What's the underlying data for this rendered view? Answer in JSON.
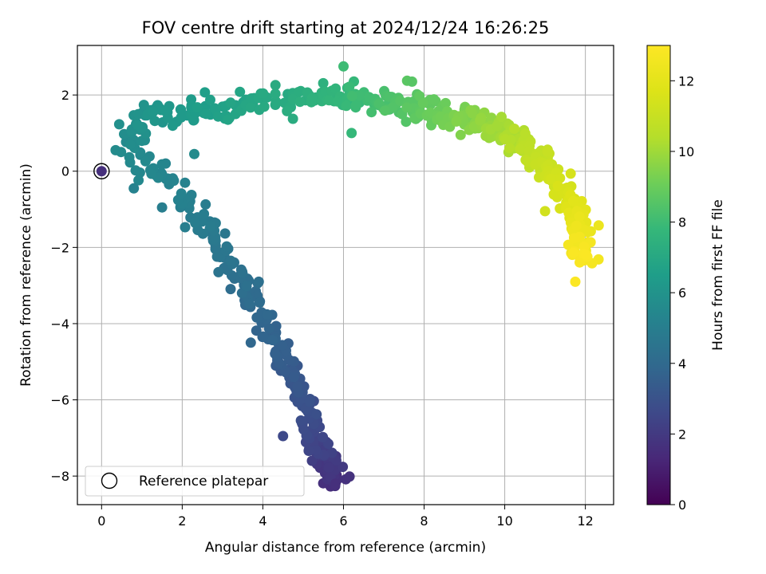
{
  "chart_data": {
    "type": "scatter",
    "title": "FOV centre drift starting at 2024/12/24 16:26:25",
    "xlabel": "Angular distance from reference (arcmin)",
    "ylabel": "Rotation from reference (arcmin)",
    "xlim": [
      -0.6,
      12.7
    ],
    "ylim": [
      -8.75,
      3.3
    ],
    "xticks": [
      0,
      2,
      4,
      6,
      8,
      10,
      12
    ],
    "yticks": [
      -8,
      -6,
      -4,
      -2,
      0,
      2
    ],
    "grid": true,
    "colormap": "viridis",
    "colorbar": {
      "label": "Hours from first FF file",
      "range": [
        0,
        13
      ],
      "ticks": [
        0,
        2,
        4,
        6,
        8,
        10,
        12
      ]
    },
    "legend": {
      "position": "lower-left",
      "entries": [
        {
          "label": "Reference platepar",
          "marker": "open-circle"
        }
      ]
    },
    "reference_point": {
      "x": 0,
      "y": 0,
      "hours": 1.6
    },
    "track_knots": [
      {
        "hours": 1.5,
        "x": 5.8,
        "y": -8.2
      },
      {
        "hours": 2.0,
        "x": 5.6,
        "y": -7.6
      },
      {
        "hours": 2.5,
        "x": 5.3,
        "y": -7.0
      },
      {
        "hours": 3.0,
        "x": 5.0,
        "y": -6.0
      },
      {
        "hours": 3.4,
        "x": 4.6,
        "y": -5.0
      },
      {
        "hours": 3.8,
        "x": 4.1,
        "y": -4.0
      },
      {
        "hours": 4.2,
        "x": 3.6,
        "y": -3.0
      },
      {
        "hours": 4.6,
        "x": 3.0,
        "y": -2.0
      },
      {
        "hours": 5.0,
        "x": 2.3,
        "y": -1.0
      },
      {
        "hours": 5.3,
        "x": 1.5,
        "y": -0.1
      },
      {
        "hours": 5.6,
        "x": 0.6,
        "y": 0.6
      },
      {
        "hours": 6.0,
        "x": 1.0,
        "y": 1.4
      },
      {
        "hours": 6.5,
        "x": 2.5,
        "y": 1.6
      },
      {
        "hours": 7.0,
        "x": 4.0,
        "y": 1.8
      },
      {
        "hours": 7.5,
        "x": 5.5,
        "y": 2.0
      },
      {
        "hours": 8.0,
        "x": 6.5,
        "y": 1.9
      },
      {
        "hours": 8.8,
        "x": 8.0,
        "y": 1.6
      },
      {
        "hours": 9.5,
        "x": 9.2,
        "y": 1.3
      },
      {
        "hours": 10.3,
        "x": 10.2,
        "y": 0.9
      },
      {
        "hours": 11.0,
        "x": 11.0,
        "y": 0.2
      },
      {
        "hours": 11.6,
        "x": 11.6,
        "y": -0.7
      },
      {
        "hours": 12.2,
        "x": 11.9,
        "y": -1.5
      },
      {
        "hours": 12.9,
        "x": 11.9,
        "y": -2.3
      }
    ],
    "outliers": [
      {
        "x": 5.8,
        "y": -8.2,
        "hours": 1.6
      },
      {
        "x": 11.75,
        "y": -2.9,
        "hours": 12.9
      },
      {
        "x": 2.9,
        "y": -2.65,
        "hours": 4.5
      },
      {
        "x": 3.7,
        "y": -4.5,
        "hours": 3.9
      },
      {
        "x": 1.5,
        "y": -0.95,
        "hours": 5.0
      },
      {
        "x": 0.8,
        "y": -0.45,
        "hours": 5.2
      },
      {
        "x": 2.3,
        "y": 0.45,
        "hours": 5.6
      },
      {
        "x": 6.0,
        "y": 2.75,
        "hours": 8.0
      },
      {
        "x": 6.2,
        "y": 1.0,
        "hours": 7.8
      },
      {
        "x": 4.5,
        "y": -6.95,
        "hours": 2.6
      },
      {
        "x": 7.7,
        "y": 2.35,
        "hours": 8.6
      },
      {
        "x": 11.0,
        "y": -1.05,
        "hours": 11.3
      }
    ]
  }
}
